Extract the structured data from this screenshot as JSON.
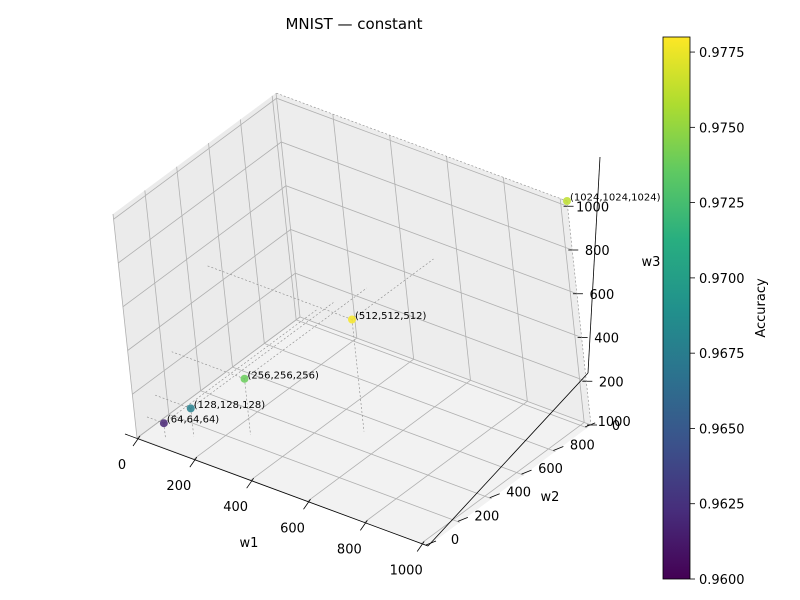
{
  "chart_data": {
    "type": "scatter",
    "title": "MNIST — constant",
    "xlabel": "w1",
    "ylabel": "w2",
    "zlabel": "w3",
    "xlim": [
      0,
      1024
    ],
    "ylim": [
      0,
      1024
    ],
    "zlim": [
      0,
      1024
    ],
    "x_ticks": [
      0,
      200,
      400,
      600,
      800,
      1000
    ],
    "y_ticks": [
      0,
      200,
      400,
      600,
      800,
      1000
    ],
    "z_ticks": [
      0,
      200,
      400,
      600,
      800,
      1000
    ],
    "grid": true,
    "colormap": "viridis",
    "colorbar": {
      "label": "Accuracy",
      "range": [
        0.96,
        0.978
      ],
      "ticks": [
        "0.9600",
        "0.9625",
        "0.9650",
        "0.9675",
        "0.9700",
        "0.9725",
        "0.9750",
        "0.9775"
      ]
    },
    "points": [
      {
        "x": 64,
        "y": 64,
        "z": 64,
        "accuracy": 0.9618,
        "label": "(64,64,64)"
      },
      {
        "x": 128,
        "y": 128,
        "z": 128,
        "accuracy": 0.9678,
        "label": "(128,128,128)"
      },
      {
        "x": 256,
        "y": 256,
        "z": 256,
        "accuracy": 0.9738,
        "label": "(256,256,256)"
      },
      {
        "x": 512,
        "y": 512,
        "z": 512,
        "accuracy": 0.9778,
        "label": "(512,512,512)"
      },
      {
        "x": 1024,
        "y": 1024,
        "z": 1024,
        "accuracy": 0.9762,
        "label": "(1024,1024,1024)"
      }
    ]
  }
}
